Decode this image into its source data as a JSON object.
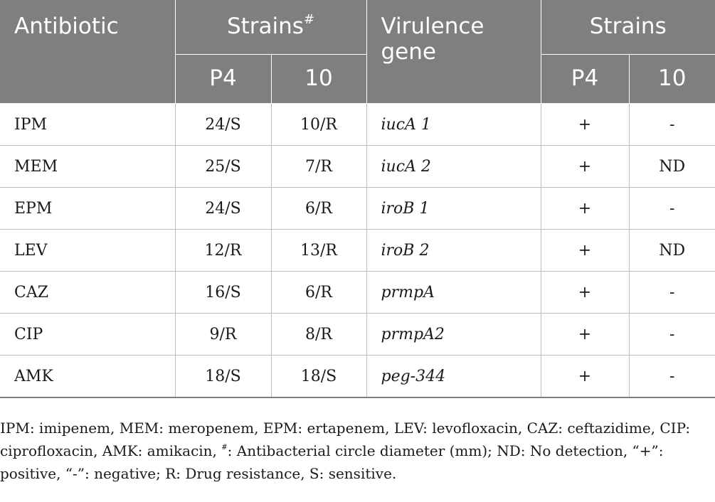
{
  "header": {
    "antibiotic": "Antibiotic",
    "strains_1": "Strains",
    "strains_1_mark": "#",
    "virulence_gene": "Virulence gene",
    "strains_2": "Strains",
    "sub": [
      "P4",
      "10",
      "P4",
      "10"
    ]
  },
  "rows": [
    {
      "antibiotic": "IPM",
      "p4": "24/S",
      "s10": "10/R",
      "gene": "iucA 1",
      "g_p4": "+",
      "g_10": "-"
    },
    {
      "antibiotic": "MEM",
      "p4": "25/S",
      "s10": "7/R",
      "gene": "iucA 2",
      "g_p4": "+",
      "g_10": "ND"
    },
    {
      "antibiotic": "EPM",
      "p4": "24/S",
      "s10": "6/R",
      "gene": "iroB 1",
      "g_p4": "+",
      "g_10": "-"
    },
    {
      "antibiotic": "LEV",
      "p4": "12/R",
      "s10": "13/R",
      "gene": "iroB 2",
      "g_p4": "+",
      "g_10": "ND"
    },
    {
      "antibiotic": "CAZ",
      "p4": "16/S",
      "s10": "6/R",
      "gene": "prmpA",
      "g_p4": "+",
      "g_10": "-"
    },
    {
      "antibiotic": "CIP",
      "p4": "9/R",
      "s10": "8/R",
      "gene": "prmpA2",
      "g_p4": "+",
      "g_10": "-"
    },
    {
      "antibiotic": "AMK",
      "p4": "18/S",
      "s10": "18/S",
      "gene": "peg-344",
      "g_p4": "+",
      "g_10": "-"
    }
  ],
  "footnote": {
    "part1": "IPM: imipenem, MEM: meropenem, EPM: ertapenem, LEV: levofloxacin, CAZ: ceftazidime, CIP: ciprofloxacin, AMK: amikacin, ",
    "mark": "#",
    "part2": ": Antibacterial circle diameter (mm); ND: No detection, “+”: positive, “-”: negative; R: Drug resistance, S: sensitive."
  }
}
